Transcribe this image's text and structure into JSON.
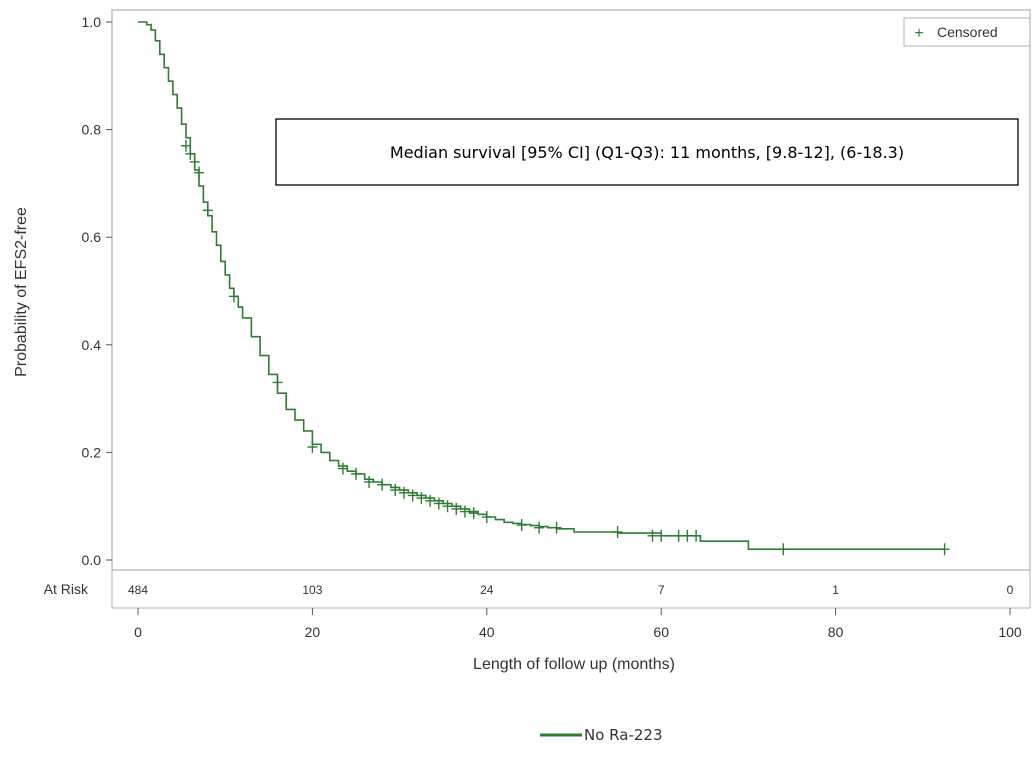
{
  "chart_data": {
    "type": "line",
    "subtype": "kaplan-meier",
    "title": "",
    "xlabel": "Length of follow up (months)",
    "ylabel": "Probability of EFS2-free",
    "xlim": [
      0,
      100
    ],
    "ylim": [
      0,
      1.0
    ],
    "x_ticks": [
      0,
      20,
      40,
      60,
      80,
      100
    ],
    "x_tick_labels": [
      "0",
      "20",
      "40",
      "60",
      "80",
      "100"
    ],
    "y_ticks": [
      0.0,
      0.2,
      0.4,
      0.6,
      0.8,
      1.0
    ],
    "y_tick_labels": [
      "0.0",
      "0.2",
      "0.4",
      "0.6",
      "0.8",
      "1.0"
    ],
    "grid": false,
    "legend_position": "top-right",
    "legend_label": "Censored",
    "legend_symbol": "+",
    "series_legend_label": "No Ra-223",
    "series_legend_position": "bottom-center",
    "color": "#2e7d32",
    "annotation": "Median survival [95% CI] (Q1-Q3): 11 months, [9.8-12], (6-18.3)",
    "at_risk": {
      "label": "At Risk",
      "times": [
        0,
        20,
        40,
        60,
        80,
        100
      ],
      "counts": [
        "484",
        "103",
        "24",
        "7",
        "1",
        "0"
      ]
    },
    "series": [
      {
        "x": [
          0.5,
          1,
          1.5,
          2,
          2.5,
          3,
          3.5,
          4,
          4.5,
          5,
          5.5,
          6,
          6.5,
          7,
          7.5,
          8,
          8.5,
          9,
          9.5,
          10,
          10.5,
          11,
          11.5,
          12,
          13,
          14,
          15,
          16,
          17,
          18,
          19,
          20,
          21,
          22,
          23,
          24,
          25,
          26,
          27,
          28,
          29,
          30,
          31,
          32,
          33,
          34,
          35,
          36,
          37,
          38,
          39,
          40,
          41,
          42,
          43,
          44,
          45,
          46,
          47,
          48,
          50,
          55,
          60,
          64,
          64.5,
          70,
          80,
          92.5
        ],
        "y": [
          1.0,
          0.995,
          0.985,
          0.965,
          0.94,
          0.915,
          0.89,
          0.865,
          0.84,
          0.81,
          0.785,
          0.755,
          0.725,
          0.695,
          0.665,
          0.64,
          0.61,
          0.585,
          0.555,
          0.53,
          0.505,
          0.49,
          0.47,
          0.45,
          0.415,
          0.38,
          0.345,
          0.31,
          0.28,
          0.26,
          0.24,
          0.215,
          0.2,
          0.185,
          0.175,
          0.165,
          0.16,
          0.15,
          0.145,
          0.14,
          0.135,
          0.13,
          0.125,
          0.12,
          0.115,
          0.11,
          0.105,
          0.1,
          0.095,
          0.09,
          0.085,
          0.08,
          0.075,
          0.07,
          0.068,
          0.066,
          0.064,
          0.062,
          0.06,
          0.058,
          0.052,
          0.05,
          0.045,
          0.045,
          0.035,
          0.02,
          0.02,
          0.02
        ]
      }
    ],
    "censored": {
      "x": [
        5.5,
        6,
        6.5,
        7,
        8,
        11,
        16,
        20,
        23.5,
        25,
        26.5,
        28,
        29.5,
        30.5,
        31.5,
        32.5,
        33.5,
        34.5,
        35.5,
        36.5,
        37.5,
        38.5,
        40,
        44,
        46,
        48,
        55,
        59,
        60,
        62,
        63,
        64,
        74,
        92.5
      ],
      "y": [
        0.77,
        0.755,
        0.74,
        0.72,
        0.65,
        0.49,
        0.33,
        0.21,
        0.17,
        0.16,
        0.145,
        0.14,
        0.13,
        0.125,
        0.12,
        0.115,
        0.11,
        0.105,
        0.1,
        0.095,
        0.09,
        0.087,
        0.08,
        0.065,
        0.06,
        0.06,
        0.052,
        0.045,
        0.045,
        0.045,
        0.045,
        0.045,
        0.02,
        0.02
      ]
    }
  }
}
